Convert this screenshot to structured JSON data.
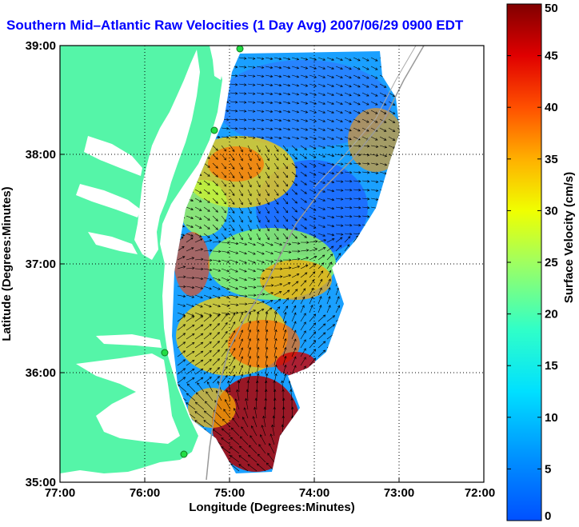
{
  "title": "Southern Mid–Atlantic Raw Velocities (1 Day Avg) 2007/06/29 0900 EDT",
  "axes": {
    "xlabel": "Longitude (Degrees:Minutes)",
    "ylabel": "Latitude (Degrees:Minutes)",
    "xticks": [
      "77:00",
      "76:00",
      "75:00",
      "74:00",
      "73:00",
      "72:00"
    ],
    "yticks": [
      "39:00",
      "38:00",
      "37:00",
      "36:00",
      "35:00"
    ]
  },
  "colorbar": {
    "label": "Surface Velocity (cm/s)",
    "ticks": [
      "0",
      "5",
      "10",
      "15",
      "20",
      "25",
      "30",
      "35",
      "40",
      "45",
      "50"
    ],
    "min": 0,
    "max": 50
  },
  "colors": {
    "land": "#55f5a8",
    "water": "#ffffff",
    "title": "#0000ff",
    "station": "#22dd44"
  }
}
